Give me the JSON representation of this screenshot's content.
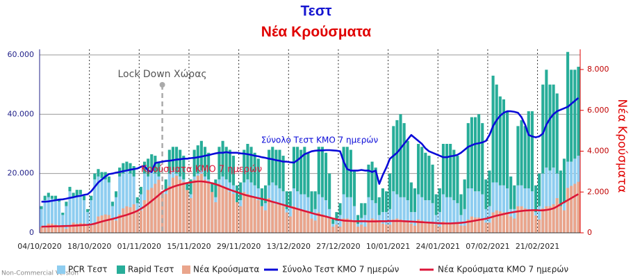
{
  "chart_data": {
    "type": "bar",
    "title": "Τεστ",
    "subtitle": "Νέα Κρούσματα",
    "y2_label": "Νέα Κρούσματα",
    "watermark": "Non-Commercial Version",
    "annotations": [
      "Lock Down Χώρας",
      "Σύνολο Τεστ ΚΜΟ 7 ημερών",
      "Κρούσματα ΚΜΟ 7 ημερών"
    ],
    "categories": [
      "04/10/2020",
      null,
      null,
      null,
      null,
      null,
      null,
      null,
      null,
      null,
      null,
      null,
      null,
      null,
      "18/10/2020",
      null,
      null,
      null,
      null,
      null,
      null,
      null,
      null,
      null,
      null,
      null,
      null,
      null,
      "01/11/2020",
      null,
      null,
      null,
      null,
      null,
      null,
      null,
      null,
      null,
      null,
      null,
      null,
      null,
      "15/11/2020",
      null,
      null,
      null,
      null,
      null,
      null,
      null,
      null,
      null,
      null,
      null,
      null,
      null,
      "29/11/2020",
      null,
      null,
      null,
      null,
      null,
      null,
      null,
      null,
      null,
      null,
      null,
      null,
      null,
      "13/12/2020",
      null,
      null,
      null,
      null,
      null,
      null,
      null,
      null,
      null,
      null,
      null,
      null,
      null,
      "27/12/2020",
      null,
      null,
      null,
      null,
      null,
      null,
      null,
      null,
      null,
      null,
      null,
      null,
      null,
      "10/01/2021",
      null,
      null,
      null,
      null,
      null,
      null,
      null,
      null,
      null,
      null,
      null,
      null,
      null,
      "24/01/2021",
      null,
      null,
      null,
      null,
      null,
      null,
      null,
      null,
      null,
      null,
      null,
      null,
      null,
      "07/02/2021",
      null,
      null,
      null,
      null,
      null,
      null,
      null,
      null,
      null,
      null,
      null,
      null,
      null,
      "21/02/2021",
      null,
      null,
      null,
      null,
      null,
      null,
      null,
      null,
      null,
      null,
      null
    ],
    "ylim": [
      0,
      60000
    ],
    "yticks": [
      0,
      {
        "value": 20000,
        "label": "20.000"
      },
      {
        "value": 40000,
        "label": "40.000"
      },
      {
        "value": 60000,
        "label": "60.000"
      }
    ],
    "y2lim": [
      0,
      8715
    ],
    "y2ticks": [
      0,
      {
        "value": 2000,
        "label": "2.000"
      },
      {
        "value": 4000,
        "label": "4.000"
      },
      {
        "value": 6000,
        "label": "6.000"
      },
      {
        "value": 8000,
        "label": "8.000"
      }
    ],
    "grid": true,
    "legend": "bottom",
    "series": [
      {
        "name": "PCR Τεστ",
        "color": "#8ecdf0",
        "kind": "bar",
        "stack": "tests",
        "values": [
          8000,
          11000,
          12000,
          11500,
          11000,
          10500,
          6000,
          9000,
          14000,
          12000,
          12500,
          13000,
          11000,
          7000,
          11000,
          18000,
          19000,
          18500,
          18000,
          17000,
          9000,
          12000,
          19000,
          20000,
          21000,
          20000,
          19000,
          10000,
          13000,
          20000,
          19000,
          21000,
          20000,
          19000,
          11000,
          14000,
          20000,
          21000,
          20000,
          19000,
          18000,
          12000,
          13000,
          19000,
          20000,
          21000,
          19000,
          18000,
          11000,
          12000,
          18000,
          19000,
          18000,
          17000,
          16000,
          10000,
          11000,
          17000,
          18000,
          17000,
          16000,
          15000,
          9000,
          10000,
          16000,
          17000,
          16000,
          15000,
          14000,
          8000,
          9000,
          15000,
          14000,
          13000,
          13000,
          12000,
          7000,
          8000,
          13000,
          12000,
          11000,
          8000,
          3000,
          4000,
          6000,
          13000,
          12000,
          12000,
          9000,
          3000,
          5000,
          6000,
          12000,
          11000,
          10000,
          6000,
          7000,
          7000,
          8000,
          14000,
          13000,
          12000,
          12000,
          11000,
          7000,
          7000,
          13000,
          12000,
          11000,
          11000,
          10000,
          6000,
          7000,
          13000,
          12000,
          12000,
          11000,
          10000,
          6000,
          8000,
          15000,
          15000,
          14000,
          14000,
          13000,
          8000,
          9000,
          17000,
          17000,
          16000,
          16000,
          15000,
          8000,
          8000,
          16000,
          16000,
          15000,
          15000,
          14000,
          7000,
          9000,
          20000,
          22000,
          21000,
          22000,
          20000,
          9000,
          10000,
          24000,
          24000,
          25000,
          26000
        ]
      },
      {
        "name": "Rapid Τεστ",
        "color": "#27ad99",
        "kind": "bar",
        "stack": "tests",
        "values": [
          1000,
          1500,
          1500,
          1000,
          1500,
          1000,
          800,
          1500,
          1500,
          1500,
          2000,
          1500,
          1500,
          1000,
          1500,
          2000,
          2500,
          2000,
          2500,
          2000,
          1500,
          2000,
          3000,
          3500,
          3000,
          3500,
          3500,
          2000,
          2500,
          4000,
          6000,
          5500,
          6000,
          5000,
          3000,
          4000,
          8000,
          8000,
          9000,
          9000,
          8000,
          5000,
          5000,
          9000,
          9500,
          10000,
          10000,
          9000,
          6000,
          6000,
          11000,
          12000,
          11000,
          11000,
          10000,
          6000,
          6000,
          11000,
          12000,
          12000,
          11000,
          10000,
          6000,
          6000,
          12000,
          12000,
          12000,
          13000,
          12000,
          6000,
          5000,
          14000,
          15000,
          15000,
          16000,
          15000,
          7000,
          6000,
          16000,
          17000,
          16000,
          12000,
          2000,
          3000,
          4000,
          16000,
          17000,
          16000,
          12000,
          3000,
          5000,
          4000,
          11000,
          13000,
          12000,
          6000,
          8000,
          7000,
          12000,
          22000,
          25000,
          28000,
          25000,
          20000,
          10000,
          8000,
          17000,
          17000,
          16000,
          15000,
          13000,
          7000,
          8000,
          17000,
          18000,
          18000,
          17000,
          16000,
          7000,
          10000,
          22000,
          24000,
          25000,
          26000,
          24000,
          10000,
          12000,
          36000,
          33000,
          30000,
          29000,
          26000,
          11000,
          8000,
          20000,
          22000,
          21000,
          26000,
          27000,
          9000,
          11000,
          30000,
          33000,
          29000,
          28000,
          27000,
          12000,
          15000,
          37000,
          31000,
          30000,
          30000
        ]
      },
      {
        "name": "Νέα Κρούσματα",
        "color": "#eaa58c",
        "kind": "bar",
        "axis": "y2",
        "values": [
          300,
          250,
          450,
          450,
          400,
          350,
          330,
          200,
          320,
          500,
          450,
          480,
          460,
          400,
          350,
          500,
          800,
          850,
          900,
          870,
          650,
          600,
          900,
          1200,
          1300,
          1250,
          1400,
          1100,
          1100,
          1600,
          2100,
          2200,
          2400,
          2600,
          2000,
          1900,
          2300,
          2700,
          2800,
          2600,
          2500,
          2100,
          1700,
          2600,
          2800,
          2900,
          2600,
          2500,
          2000,
          1500,
          2400,
          2300,
          2200,
          2000,
          1900,
          1500,
          1300,
          2000,
          1900,
          1800,
          1700,
          1600,
          1300,
          1100,
          1700,
          1500,
          1400,
          1400,
          1300,
          1000,
          800,
          1300,
          1200,
          1100,
          1100,
          1000,
          700,
          600,
          1000,
          900,
          800,
          700,
          300,
          400,
          300,
          700,
          700,
          650,
          600,
          300,
          400,
          300,
          600,
          700,
          650,
          600,
          450,
          400,
          400,
          650,
          700,
          650,
          600,
          550,
          450,
          350,
          650,
          600,
          550,
          500,
          450,
          400,
          300,
          550,
          500,
          500,
          500,
          450,
          350,
          350,
          650,
          800,
          750,
          750,
          700,
          500,
          500,
          1000,
          1100,
          1050,
          1000,
          1000,
          800,
          700,
          1300,
          1300,
          1200,
          1150,
          1100,
          850,
          650,
          1200,
          1300,
          1300,
          1400,
          1700,
          1300,
          1100,
          2200,
          2300,
          2400,
          2500
        ]
      },
      {
        "name": "Σύνολο Τεστ ΚΜΟ 7 ημερών",
        "color": "#0a0ad8",
        "kind": "line",
        "values": [
          10500,
          10500,
          10600,
          10800,
          11000,
          11200,
          11300,
          11500,
          11800,
          12000,
          12300,
          12500,
          12800,
          13000,
          14000,
          15500,
          17000,
          18000,
          19000,
          19800,
          20000,
          20300,
          20500,
          20800,
          21000,
          21300,
          21500,
          21700,
          22300,
          22500,
          21000,
          20500,
          23500,
          23800,
          24000,
          24200,
          24300,
          24500,
          24700,
          24800,
          25000,
          25000,
          25200,
          25300,
          25500,
          25700,
          26000,
          26200,
          26500,
          26800,
          27000,
          27000,
          27200,
          27000,
          27000,
          27000,
          26800,
          26700,
          26500,
          26300,
          26000,
          25800,
          25500,
          25300,
          25000,
          24800,
          24500,
          24300,
          24000,
          24000,
          23800,
          23700,
          24500,
          25500,
          26500,
          27000,
          27500,
          27700,
          27800,
          27800,
          27900,
          27900,
          27800,
          27700,
          27500,
          24000,
          21500,
          21000,
          21000,
          21000,
          21200,
          21000,
          21000,
          20500,
          21000,
          16500,
          19500,
          22000,
          25000,
          26000,
          27000,
          28500,
          30000,
          31500,
          33000,
          32000,
          31000,
          30000,
          28500,
          27500,
          27000,
          26500,
          26000,
          25500,
          25500,
          25800,
          26000,
          26300,
          27000,
          28000,
          29000,
          29500,
          30000,
          30200,
          30500,
          31000,
          33000,
          36000,
          38000,
          39500,
          40500,
          41000,
          41000,
          40800,
          40500,
          39000,
          36500,
          33000,
          32500,
          32200,
          32500,
          33500,
          36500,
          38500,
          40000,
          41000,
          41500,
          42000,
          42500,
          43500,
          44500,
          45500
        ]
      },
      {
        "name": "Νέα Κρούσματα ΚΜΟ 7 ημερών",
        "color": "#dc1638",
        "kind": "line",
        "axis": "y2",
        "values": [
          300,
          305,
          310,
          315,
          320,
          325,
          330,
          335,
          340,
          350,
          360,
          370,
          380,
          390,
          410,
          450,
          500,
          550,
          600,
          640,
          680,
          730,
          780,
          830,
          880,
          940,
          1000,
          1080,
          1180,
          1290,
          1420,
          1560,
          1700,
          1850,
          2000,
          2100,
          2180,
          2250,
          2310,
          2360,
          2400,
          2440,
          2470,
          2500,
          2520,
          2520,
          2500,
          2470,
          2430,
          2380,
          2320,
          2250,
          2180,
          2110,
          2050,
          1990,
          1930,
          1870,
          1820,
          1780,
          1740,
          1700,
          1660,
          1620,
          1570,
          1520,
          1470,
          1420,
          1370,
          1320,
          1270,
          1220,
          1170,
          1120,
          1070,
          1020,
          970,
          920,
          880,
          840,
          800,
          750,
          700,
          660,
          630,
          600,
          590,
          580,
          570,
          570,
          570,
          570,
          560,
          560,
          560,
          570,
          570,
          570,
          580,
          580,
          580,
          580,
          570,
          560,
          550,
          540,
          530,
          520,
          510,
          500,
          490,
          480,
          470,
          460,
          460,
          460,
          470,
          480,
          490,
          510,
          540,
          570,
          600,
          630,
          660,
          690,
          740,
          790,
          840,
          880,
          920,
          960,
          990,
          1020,
          1050,
          1070,
          1090,
          1100,
          1110,
          1110,
          1100,
          1100,
          1120,
          1150,
          1200,
          1290,
          1400,
          1500,
          1600,
          1700,
          1800,
          1900
        ]
      }
    ]
  }
}
